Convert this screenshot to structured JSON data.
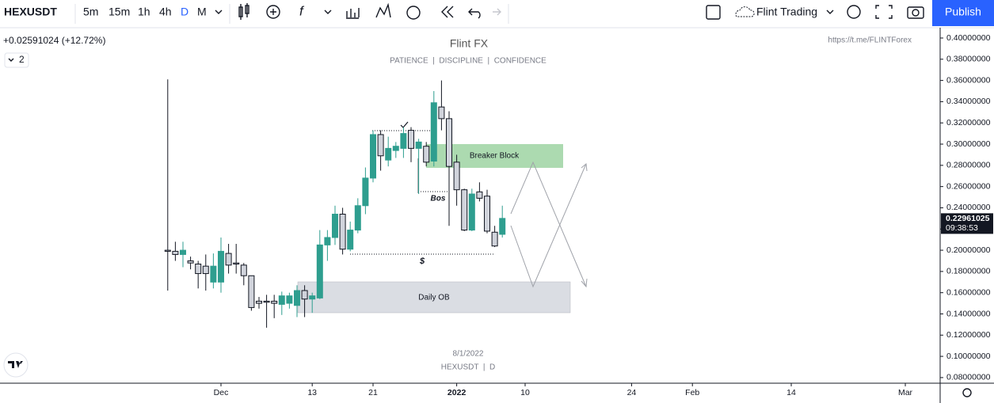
{
  "toolbar": {
    "symbol": "HEXUSDT",
    "intervals": [
      "5m",
      "15m",
      "1h",
      "4h",
      "D",
      "M"
    ],
    "layout_name": "Flint Trading",
    "publish": "Publish"
  },
  "legend": {
    "change": "+0.02591024 (+12.72%)",
    "indicator_count": "2"
  },
  "chart_data": {
    "type": "candlestick",
    "title": "Flint FX",
    "subtitle": "PATIENCE  |  DISCIPLINE  |  CONFIDENCE",
    "link": "https://t.me/FLINTForex",
    "watermark": [
      "8/1/2022",
      "HEXUSDT  |  D"
    ],
    "annotations": {
      "breaker_block": "Breaker Block",
      "daily_ob": "Daily OB",
      "bos": "Bos",
      "liquidity": "$"
    },
    "x": [
      -7,
      -6,
      -5,
      -4,
      -3,
      -2,
      -1,
      0,
      1,
      2,
      3,
      4,
      5,
      6,
      7,
      8,
      9,
      10,
      11,
      12,
      13,
      14,
      15,
      16,
      17,
      18,
      19,
      20,
      21,
      22,
      23,
      24,
      25,
      26,
      27,
      28,
      29,
      30,
      31,
      32,
      33,
      34,
      35,
      36,
      37
    ],
    "open": [
      0.2,
      0.199,
      0.196,
      0.19,
      0.187,
      0.185,
      0.17,
      0.17,
      0.197,
      0.188,
      0.186,
      0.176,
      0.152,
      0.152,
      0.152,
      0.149,
      0.15,
      0.148,
      0.162,
      0.154,
      0.155,
      0.205,
      0.212,
      0.234,
      0.201,
      0.219,
      0.242,
      0.268,
      0.309,
      0.285,
      0.294,
      0.296,
      0.313,
      0.296,
      0.298,
      0.284,
      0.335,
      0.324,
      0.283,
      0.257,
      0.219,
      0.255,
      0.251,
      0.217,
      0.215
    ],
    "high": [
      0.361,
      0.208,
      0.208,
      0.194,
      0.19,
      0.196,
      0.197,
      0.212,
      0.206,
      0.206,
      0.188,
      0.176,
      0.156,
      0.158,
      0.158,
      0.161,
      0.16,
      0.167,
      0.167,
      0.16,
      0.219,
      0.219,
      0.242,
      0.24,
      0.227,
      0.249,
      0.278,
      0.313,
      0.313,
      0.307,
      0.302,
      0.316,
      0.316,
      0.305,
      0.302,
      0.35,
      0.36,
      0.331,
      0.29,
      0.258,
      0.258,
      0.264,
      0.257,
      0.223,
      0.242
    ],
    "low": [
      0.162,
      0.19,
      0.184,
      0.182,
      0.164,
      0.162,
      0.164,
      0.16,
      0.178,
      0.178,
      0.167,
      0.143,
      0.145,
      0.127,
      0.136,
      0.139,
      0.145,
      0.137,
      0.137,
      0.141,
      0.154,
      0.19,
      0.205,
      0.196,
      0.199,
      0.216,
      0.234,
      0.264,
      0.275,
      0.279,
      0.287,
      0.287,
      0.283,
      0.253,
      0.279,
      0.279,
      0.313,
      0.223,
      0.242,
      0.218,
      0.218,
      0.246,
      0.216,
      0.203,
      0.212
    ],
    "close": [
      0.199,
      0.196,
      0.2,
      0.188,
      0.178,
      0.178,
      0.185,
      0.199,
      0.186,
      0.187,
      0.176,
      0.146,
      0.15,
      0.151,
      0.15,
      0.157,
      0.157,
      0.162,
      0.154,
      0.157,
      0.205,
      0.212,
      0.234,
      0.201,
      0.219,
      0.242,
      0.268,
      0.309,
      0.289,
      0.296,
      0.298,
      0.31,
      0.296,
      0.302,
      0.283,
      0.339,
      0.324,
      0.279,
      0.257,
      0.219,
      0.253,
      0.249,
      0.218,
      0.204,
      0.23
    ],
    "up_color": "#2e9e8f",
    "down_color": "#d1d4dc",
    "last_price": 0.22961025,
    "countdown": "09:38:53",
    "xlim": [
      -29.06,
      94.58
    ],
    "xticks": [
      {
        "value": 0,
        "label": "Dec"
      },
      {
        "value": 12,
        "label": "13"
      },
      {
        "value": 20,
        "label": "21"
      },
      {
        "value": 31,
        "label": "2022"
      },
      {
        "value": 40,
        "label": "10"
      },
      {
        "value": 54,
        "label": "24"
      },
      {
        "value": 62,
        "label": "Feb"
      },
      {
        "value": 75,
        "label": "14"
      },
      {
        "value": 90,
        "label": "Mar"
      }
    ],
    "ylim": [
      0.0747,
      0.4097
    ],
    "yticks": [
      {
        "value": 0.08,
        "label": "0.08000000"
      },
      {
        "value": 0.1,
        "label": "0.10000000"
      },
      {
        "value": 0.12,
        "label": "0.12000000"
      },
      {
        "value": 0.14,
        "label": "0.14000000"
      },
      {
        "value": 0.16,
        "label": "0.16000000"
      },
      {
        "value": 0.18,
        "label": "0.18000000"
      },
      {
        "value": 0.2,
        "label": "0.20000000"
      },
      {
        "value": 0.22,
        "label": "0.22000000"
      },
      {
        "value": 0.24,
        "label": "0.24000000"
      },
      {
        "value": 0.26,
        "label": "0.26000000"
      },
      {
        "value": 0.28,
        "label": "0.28000000"
      },
      {
        "value": 0.3,
        "label": "0.30000000"
      },
      {
        "value": 0.32,
        "label": "0.32000000"
      },
      {
        "value": 0.34,
        "label": "0.34000000"
      },
      {
        "value": 0.36,
        "label": "0.36000000"
      },
      {
        "value": 0.38,
        "label": "0.38000000"
      },
      {
        "value": 0.4,
        "label": "0.40000000"
      }
    ],
    "grid": false
  }
}
